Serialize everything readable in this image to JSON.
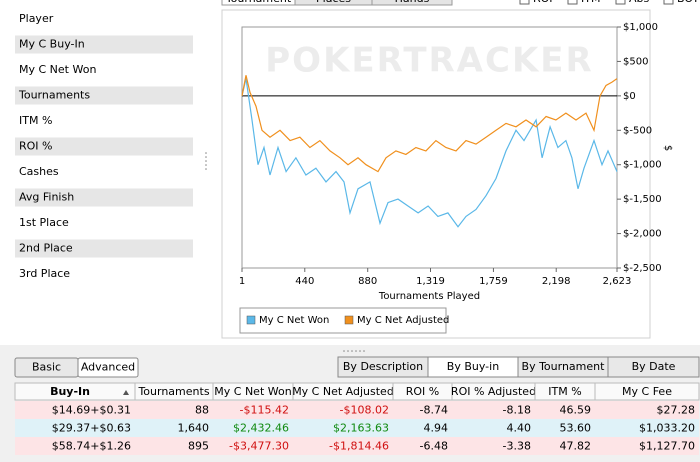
{
  "top_tabs": [
    "Tournament",
    "Places",
    "Hands"
  ],
  "checkboxes": [
    "ROI",
    "ITM",
    "Abs",
    "BOY"
  ],
  "stats": [
    "Player",
    "My C Buy-In",
    "My C Net Won",
    "Tournaments",
    "ITM %",
    "ROI %",
    "Cashes",
    "Avg Finish",
    "1st Place",
    "2nd Place",
    "3rd Place"
  ],
  "chart_data": {
    "type": "line",
    "watermark": "POKERTRACKER",
    "x_label": "Tournaments Played",
    "y_label": "$",
    "xlim": [
      1,
      2623
    ],
    "xticks": [
      1,
      440,
      880,
      {
        "value": 1319,
        "label": "1,319"
      },
      {
        "value": 1759,
        "label": "1,759"
      },
      {
        "value": 2198,
        "label": "2,198"
      },
      {
        "value": 2623,
        "label": "2,623"
      }
    ],
    "ylim": [
      -2500,
      1000
    ],
    "yticks": [
      {
        "value": 1000,
        "label": "$1,000"
      },
      {
        "value": 500,
        "label": "$500"
      },
      {
        "value": 0,
        "label": "$0"
      },
      {
        "value": -500,
        "label": "$-500"
      },
      {
        "value": -1000,
        "label": "$-1,000"
      },
      {
        "value": -1500,
        "label": "$-1,500"
      },
      {
        "value": -2000,
        "label": "$-2,000"
      },
      {
        "value": -2500,
        "label": "$-2,500"
      }
    ],
    "series": [
      {
        "name": "My C Net Won",
        "color": "#5bb8e8",
        "x": [
          1,
          29,
          71,
          113,
          155,
          197,
          253,
          309,
          378,
          448,
          518,
          588,
          658,
          714,
          756,
          812,
          896,
          966,
          1022,
          1092,
          1162,
          1232,
          1302,
          1371,
          1441,
          1511,
          1567,
          1637,
          1707,
          1777,
          1847,
          1917,
          1973,
          2057,
          2099,
          2155,
          2210,
          2266,
          2308,
          2350,
          2392,
          2462,
          2518,
          2560,
          2623
        ],
        "values": [
          0,
          250,
          -350,
          -1000,
          -750,
          -1150,
          -750,
          -1100,
          -900,
          -1150,
          -1050,
          -1250,
          -1100,
          -1250,
          -1700,
          -1350,
          -1250,
          -1850,
          -1550,
          -1500,
          -1600,
          -1700,
          -1600,
          -1750,
          -1700,
          -1900,
          -1750,
          -1650,
          -1450,
          -1200,
          -800,
          -500,
          -650,
          -350,
          -900,
          -450,
          -750,
          -650,
          -900,
          -1350,
          -1050,
          -650,
          -1000,
          -800,
          -1100
        ]
      },
      {
        "name": "My C Net Adjusted",
        "color": "#f0901e",
        "x": [
          1,
          29,
          57,
          99,
          141,
          197,
          267,
          337,
          406,
          476,
          546,
          616,
          686,
          742,
          812,
          868,
          952,
          1008,
          1077,
          1147,
          1217,
          1287,
          1357,
          1427,
          1497,
          1567,
          1637,
          1707,
          1777,
          1847,
          1917,
          1987,
          2057,
          2127,
          2196,
          2266,
          2336,
          2406,
          2462,
          2504,
          2546,
          2588,
          2623
        ],
        "values": [
          0,
          300,
          50,
          -150,
          -500,
          -600,
          -500,
          -650,
          -600,
          -750,
          -650,
          -800,
          -900,
          -1000,
          -900,
          -1000,
          -1100,
          -900,
          -800,
          -850,
          -750,
          -800,
          -650,
          -750,
          -800,
          -650,
          -700,
          -600,
          -500,
          -400,
          -450,
          -350,
          -450,
          -300,
          -350,
          -250,
          -350,
          -250,
          -500,
          0,
          150,
          200,
          250
        ]
      }
    ]
  },
  "view_buttons": [
    "Basic",
    "Advanced"
  ],
  "group_tabs": [
    "By Description",
    "By Buy-in",
    "By Tournament",
    "By Date"
  ],
  "table": {
    "columns": [
      "Buy-In",
      "Tournaments",
      "My C Net Won",
      "My C Net Adjusted",
      "ROI %",
      "ROI % Adjusted",
      "ITM %",
      "My C Fee"
    ],
    "rows": [
      [
        "$14.69+$0.31",
        "88",
        "-$115.42",
        "-$108.02",
        "-8.74",
        "-8.18",
        "46.59",
        "$27.28"
      ],
      [
        "$29.37+$0.63",
        "1,640",
        "$2,432.46",
        "$2,163.63",
        "4.94",
        "4.40",
        "53.60",
        "$1,033.20"
      ],
      [
        "$58.74+$1.26",
        "895",
        "-$3,477.30",
        "-$1,814.46",
        "-6.48",
        "-3.38",
        "47.82",
        "$1,127.70"
      ]
    ]
  }
}
